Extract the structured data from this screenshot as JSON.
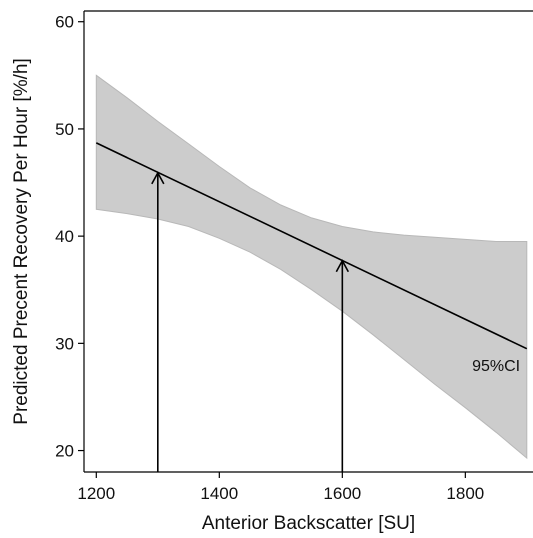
{
  "chart_data": {
    "type": "line",
    "title": "",
    "xlabel": "Anterior Backscatter [SU]",
    "ylabel": "Predicted Precent Recovery Per Hour [%/h]",
    "xlim": [
      1180,
      1910
    ],
    "ylim": [
      18,
      61
    ],
    "x_ticks": [
      1200,
      1400,
      1600,
      1800
    ],
    "y_ticks": [
      20,
      30,
      40,
      50,
      60
    ],
    "grid": false,
    "legend": "none",
    "series": [
      {
        "x": [
          1200,
          1900
        ],
        "y": [
          48.7,
          29.5
        ],
        "color": "#000000"
      }
    ],
    "confidence_band": {
      "label": "95%CI",
      "color": "#cccccc",
      "x": [
        1200,
        1250,
        1300,
        1350,
        1400,
        1450,
        1500,
        1550,
        1600,
        1650,
        1700,
        1750,
        1800,
        1850,
        1900
      ],
      "upper": [
        55.0,
        52.9,
        50.7,
        48.6,
        46.5,
        44.5,
        42.9,
        41.7,
        40.9,
        40.4,
        40.1,
        39.9,
        39.7,
        39.5,
        39.5
      ],
      "lower": [
        42.5,
        42.1,
        41.6,
        40.9,
        39.8,
        38.5,
        36.9,
        35.0,
        33.0,
        30.8,
        28.5,
        26.2,
        24.0,
        21.7,
        19.3
      ]
    },
    "annotations": [
      {
        "type": "arrow",
        "x": 1300,
        "y_from": 18,
        "y_to": 45.9
      },
      {
        "type": "arrow",
        "x": 1600,
        "y_from": 18,
        "y_to": 37.7
      },
      {
        "type": "text",
        "text": "95%CI",
        "x": 1850,
        "y": 28
      }
    ]
  }
}
